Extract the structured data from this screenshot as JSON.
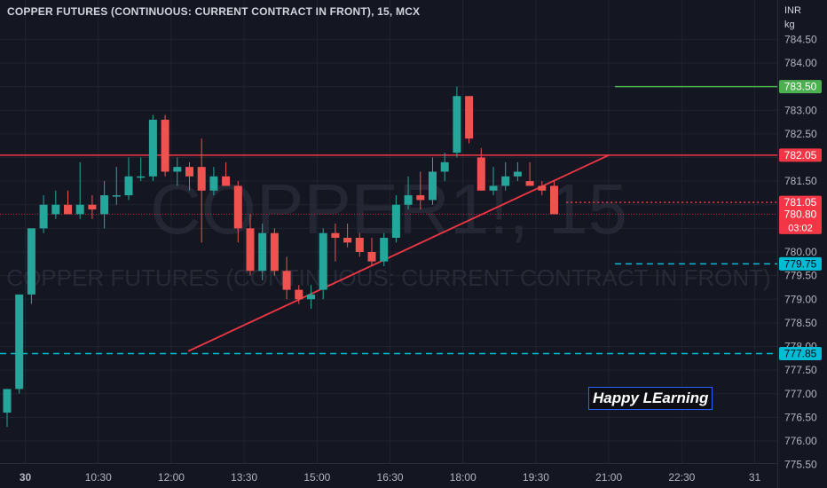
{
  "header": {
    "title": "COPPER FUTURES (CONTINUOUS: CURRENT CONTRACT IN FRONT), 15, MCX",
    "currency": "INR",
    "unit": "kg"
  },
  "watermark": {
    "symbol": "COPPER1!, 15",
    "description": "COPPER FUTURES (CONTINUOUS: CURRENT CONTRACT IN FRONT)"
  },
  "note": "Happy LEarning",
  "colors": {
    "up": "#26a69a",
    "down": "#ef5350",
    "background": "#141722",
    "grid": "#1f2330",
    "axis_text": "#b2b5be",
    "cyan": "#00bcd4",
    "green": "#4caf50"
  },
  "chart_data": {
    "type": "candlestick",
    "ylim": [
      775.5,
      784.75
    ],
    "y_ticks": [
      "775.50",
      "776.00",
      "776.50",
      "777.00",
      "777.50",
      "778.00",
      "778.50",
      "779.00",
      "779.50",
      "780.00",
      "780.50",
      "781.00",
      "781.50",
      "782.00",
      "782.50",
      "783.00",
      "783.50",
      "784.00",
      "784.50"
    ],
    "x_ticks": [
      "30",
      "10:30",
      "12:00",
      "13:30",
      "15:00",
      "16:30",
      "18:00",
      "19:30",
      "21:00",
      "22:30",
      "31"
    ],
    "x_tick_idx": [
      1.5,
      7.5,
      13.5,
      19.5,
      25.5,
      31.5,
      37.5,
      43.5,
      49.5,
      55.5,
      61.5
    ],
    "candles": [
      {
        "o": 776.6,
        "h": 777.1,
        "l": 776.3,
        "c": 777.1
      },
      {
        "o": 777.1,
        "h": 779.1,
        "l": 777.0,
        "c": 779.1
      },
      {
        "o": 779.1,
        "h": 780.5,
        "l": 778.9,
        "c": 780.5
      },
      {
        "o": 780.5,
        "h": 781.2,
        "l": 780.4,
        "c": 781.0
      },
      {
        "o": 780.8,
        "h": 781.3,
        "l": 780.7,
        "c": 781.0
      },
      {
        "o": 781.0,
        "h": 781.3,
        "l": 780.8,
        "c": 780.8
      },
      {
        "o": 780.8,
        "h": 781.9,
        "l": 780.7,
        "c": 781.0
      },
      {
        "o": 781.0,
        "h": 781.2,
        "l": 780.7,
        "c": 780.9
      },
      {
        "o": 780.8,
        "h": 781.5,
        "l": 780.5,
        "c": 781.2
      },
      {
        "o": 781.2,
        "h": 781.8,
        "l": 781.0,
        "c": 781.2
      },
      {
        "o": 781.2,
        "h": 782.0,
        "l": 781.1,
        "c": 781.6
      },
      {
        "o": 781.6,
        "h": 782.0,
        "l": 781.5,
        "c": 781.6
      },
      {
        "o": 781.6,
        "h": 782.9,
        "l": 781.5,
        "c": 782.8
      },
      {
        "o": 782.8,
        "h": 782.9,
        "l": 781.6,
        "c": 781.7
      },
      {
        "o": 781.7,
        "h": 782.0,
        "l": 781.4,
        "c": 781.8
      },
      {
        "o": 781.8,
        "h": 781.9,
        "l": 781.3,
        "c": 781.6
      },
      {
        "o": 781.8,
        "h": 782.4,
        "l": 780.2,
        "c": 781.3
      },
      {
        "o": 781.3,
        "h": 781.8,
        "l": 781.2,
        "c": 781.6
      },
      {
        "o": 781.6,
        "h": 781.9,
        "l": 781.4,
        "c": 781.4
      },
      {
        "o": 781.4,
        "h": 781.5,
        "l": 780.2,
        "c": 780.5
      },
      {
        "o": 780.5,
        "h": 780.8,
        "l": 779.5,
        "c": 779.6
      },
      {
        "o": 779.6,
        "h": 780.6,
        "l": 779.4,
        "c": 780.4
      },
      {
        "o": 780.4,
        "h": 780.5,
        "l": 779.5,
        "c": 779.6
      },
      {
        "o": 779.6,
        "h": 779.9,
        "l": 779.0,
        "c": 779.2
      },
      {
        "o": 779.2,
        "h": 779.3,
        "l": 778.9,
        "c": 779.0
      },
      {
        "o": 779.0,
        "h": 779.3,
        "l": 778.8,
        "c": 779.1
      },
      {
        "o": 779.2,
        "h": 780.5,
        "l": 779.0,
        "c": 780.4
      },
      {
        "o": 780.4,
        "h": 780.6,
        "l": 779.8,
        "c": 780.3
      },
      {
        "o": 780.3,
        "h": 780.6,
        "l": 780.1,
        "c": 780.2
      },
      {
        "o": 780.3,
        "h": 780.4,
        "l": 779.9,
        "c": 780.0
      },
      {
        "o": 780.0,
        "h": 780.3,
        "l": 779.7,
        "c": 779.8
      },
      {
        "o": 779.8,
        "h": 780.4,
        "l": 779.7,
        "c": 780.3
      },
      {
        "o": 780.3,
        "h": 781.2,
        "l": 780.2,
        "c": 781.0
      },
      {
        "o": 781.0,
        "h": 781.6,
        "l": 780.9,
        "c": 781.2
      },
      {
        "o": 781.2,
        "h": 781.7,
        "l": 780.9,
        "c": 781.1
      },
      {
        "o": 781.1,
        "h": 782.0,
        "l": 781.0,
        "c": 781.7
      },
      {
        "o": 781.7,
        "h": 782.1,
        "l": 781.5,
        "c": 781.9
      },
      {
        "o": 782.1,
        "h": 783.5,
        "l": 782.0,
        "c": 783.3
      },
      {
        "o": 783.3,
        "h": 783.3,
        "l": 782.3,
        "c": 782.4
      },
      {
        "o": 782.0,
        "h": 782.2,
        "l": 781.3,
        "c": 781.3
      },
      {
        "o": 781.3,
        "h": 781.8,
        "l": 781.2,
        "c": 781.4
      },
      {
        "o": 781.4,
        "h": 781.9,
        "l": 781.3,
        "c": 781.6
      },
      {
        "o": 781.6,
        "h": 781.9,
        "l": 781.5,
        "c": 781.7
      },
      {
        "o": 781.5,
        "h": 781.9,
        "l": 781.4,
        "c": 781.4
      },
      {
        "o": 781.4,
        "h": 781.5,
        "l": 781.2,
        "c": 781.3
      },
      {
        "o": 781.4,
        "h": 781.5,
        "l": 780.8,
        "c": 780.8
      }
    ],
    "horizontal_lines": [
      {
        "price": 782.05,
        "label": "782.05",
        "style": "solid",
        "color": "#f23645",
        "bg": "#f23645",
        "from": -1
      },
      {
        "price": 783.5,
        "label": "783.50",
        "style": "solid",
        "color": "#4caf50",
        "bg": "#4caf50",
        "from": 50
      },
      {
        "price": 779.75,
        "label": "779.75",
        "style": "dashed",
        "color": "#00bcd4",
        "bg": "#00bcd4",
        "from": 50
      },
      {
        "price": 777.85,
        "label": "777.85",
        "style": "dashed",
        "color": "#00bcd4",
        "bg": "#00bcd4",
        "from": -1
      },
      {
        "price": 781.05,
        "label": "781.05",
        "style": "dotted",
        "color": "#f23645",
        "bg": "#f23645",
        "from": 46
      },
      {
        "price": 780.8,
        "label": "780.80",
        "style": "dotted-thin",
        "color": "#f23645",
        "bg": "#f23645",
        "from": -1
      }
    ],
    "last_price": {
      "value": "780.80",
      "countdown": "03:02"
    },
    "trendline": {
      "from": {
        "idx": 14.9,
        "price": 777.9
      },
      "to": {
        "idx": 49.5,
        "price": 782.05
      }
    }
  }
}
